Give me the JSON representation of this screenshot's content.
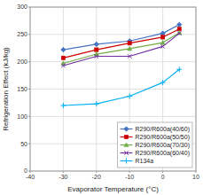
{
  "chart_data": {
    "type": "line",
    "xlabel": "Evaporator Temperature (°C)",
    "ylabel": "Refrigeration Effect (kJ/kg)",
    "x": [
      -30,
      -20,
      -10,
      0,
      5
    ],
    "xlim": [
      -40,
      10
    ],
    "ylim": [
      0,
      300
    ],
    "xticks": [
      -40,
      -30,
      -20,
      -10,
      0,
      10
    ],
    "yticks": [
      0,
      50,
      100,
      150,
      200,
      250,
      300
    ],
    "grid": true,
    "legend": "lower right",
    "series": [
      {
        "name": "R290/R600a(40/60)",
        "color": "#4472C4",
        "marker": "diamond",
        "values": [
          222,
          232,
          238,
          252,
          268
        ]
      },
      {
        "name": "R290/R600a(50/50)",
        "color": "#CC0000",
        "marker": "square",
        "values": [
          207,
          222,
          234,
          245,
          260
        ]
      },
      {
        "name": "R290/R600a(70/30)",
        "color": "#70AD47",
        "marker": "triangle",
        "values": [
          197,
          214,
          224,
          235,
          253
        ]
      },
      {
        "name": "R290/R600a(60/40)",
        "color": "#7030A0",
        "marker": "x",
        "values": [
          193,
          210,
          210,
          228,
          252
        ]
      },
      {
        "name": "R134a",
        "color": "#00B0F0",
        "marker": "plus",
        "values": [
          120,
          123,
          137,
          162,
          186
        ]
      }
    ]
  }
}
